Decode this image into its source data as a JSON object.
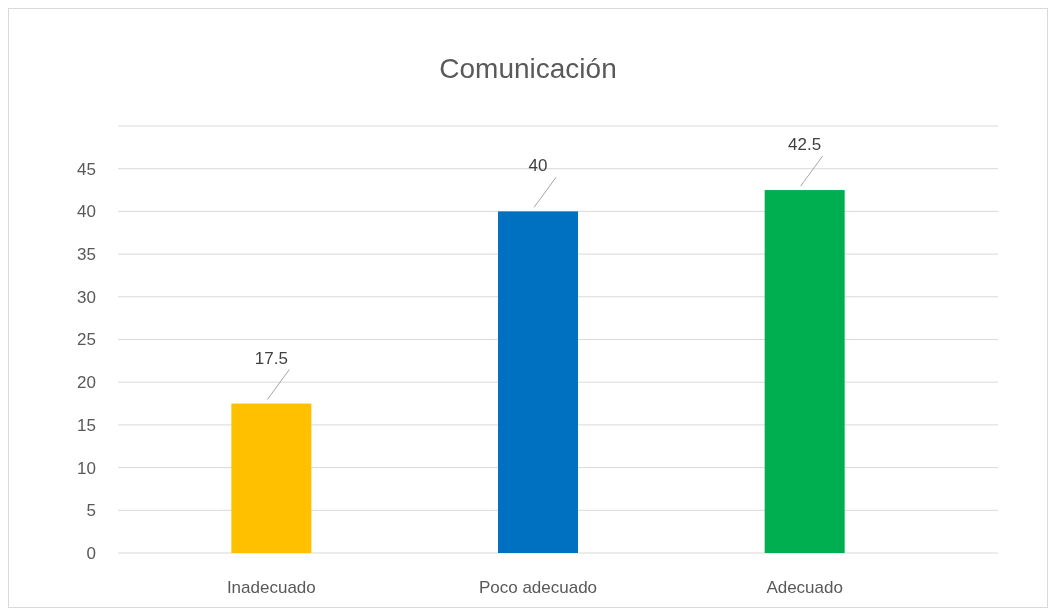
{
  "chart_data": {
    "type": "bar",
    "title": "Comunicación",
    "categories": [
      "Inadecuado",
      "Poco adecuado",
      "Adecuado"
    ],
    "values": [
      17.5,
      40,
      42.5
    ],
    "colors": [
      "#ffc000",
      "#0070c0",
      "#00b050"
    ],
    "ylim": [
      0,
      50
    ],
    "yticks": [
      0,
      5,
      10,
      15,
      20,
      25,
      30,
      35,
      40,
      45,
      {
        "value": 50,
        "label": null
      }
    ],
    "grid": true,
    "data_labels": true
  }
}
